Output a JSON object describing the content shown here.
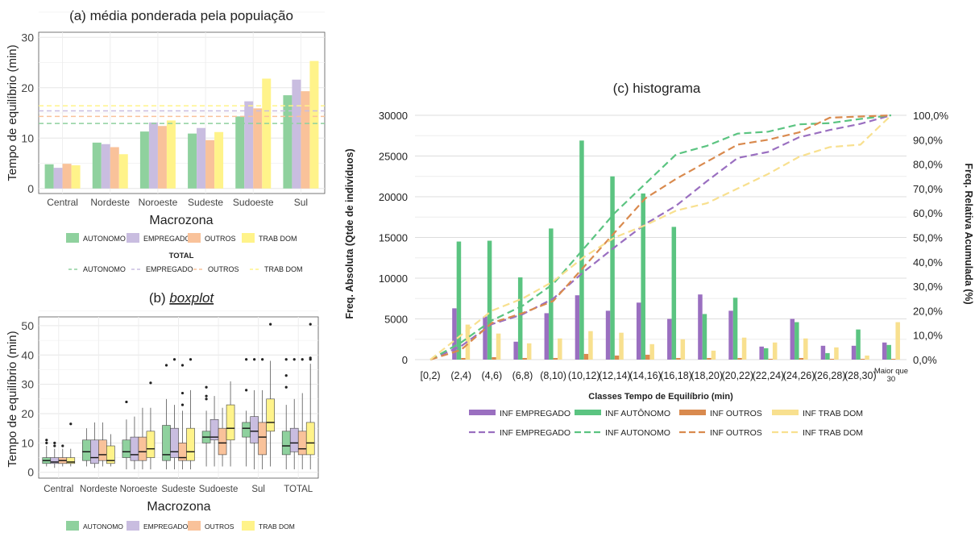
{
  "colors": {
    "autonomo": "#8fd19e",
    "empregado": "#c9bde0",
    "outros": "#f9c29a",
    "trab_dom": "#fff38a",
    "h_empregado": "#9a6fc0",
    "h_autonomo": "#5bc481",
    "h_outros": "#d98a4e",
    "h_trabdom": "#f8e08f"
  },
  "chart_data": [
    {
      "type": "bar",
      "title": "(a) média ponderada pela população",
      "xlabel": "Macrozona",
      "ylabel": "Tempo de equilíbrio (min)",
      "ylim": [
        -1,
        31
      ],
      "yticks": [
        "0",
        "10",
        "20",
        "30"
      ],
      "categories": [
        "Central",
        "Nordeste",
        "Noroeste",
        "Sudeste",
        "Sudoeste",
        "Sul"
      ],
      "series": [
        {
          "name": "AUTONOMO",
          "values": [
            4.8,
            9.1,
            11.3,
            10.9,
            14.3,
            18.5
          ]
        },
        {
          "name": "EMPREGADO",
          "values": [
            4.1,
            8.8,
            13.1,
            12.0,
            17.3,
            21.6
          ]
        },
        {
          "name": "OUTROS",
          "values": [
            4.9,
            8.2,
            12.4,
            9.6,
            15.9,
            19.3
          ]
        },
        {
          "name": "TRAB DOM",
          "values": [
            4.6,
            6.8,
            13.5,
            11.2,
            21.8,
            25.3
          ]
        }
      ],
      "total_lines": [
        {
          "name": "AUTONOMO",
          "value": 12.9
        },
        {
          "name": "EMPREGADO",
          "value": 15.4
        },
        {
          "name": "OUTROS",
          "value": 14.3
        },
        {
          "name": "TRAB DOM",
          "value": 16.4
        }
      ],
      "legend_title": "TOTAL",
      "grid": true,
      "legend": "bottom"
    },
    {
      "type": "box",
      "title_prefix": "(b) ",
      "title_emph": "boxplot",
      "xlabel": "Macrozona",
      "ylabel": "Tempo de equilíbrio (min)",
      "ylim": [
        -2,
        53
      ],
      "yticks": [
        "0",
        "10",
        "20",
        "30",
        "40",
        "50"
      ],
      "categories": [
        "Central",
        "Nordeste",
        "Noroeste",
        "Sudeste",
        "Sudoeste",
        "Sul",
        "TOTAL"
      ],
      "series_names": [
        "AUTONOMO",
        "EMPREGADO",
        "OUTROS",
        "TRAB DOM"
      ],
      "boxes": [
        [
          [
            2,
            3,
            4,
            4.5,
            5,
            9,
            [
              10,
              11
            ]
          ],
          [
            1.5,
            3,
            3.5,
            4,
            5,
            8,
            [
              9,
              10
            ]
          ],
          [
            2,
            3,
            4,
            4.5,
            5,
            8,
            [
              9
            ]
          ],
          [
            2,
            3,
            3.5,
            4.5,
            5,
            8,
            [
              16.5
            ]
          ]
        ],
        [
          [
            2,
            4,
            7,
            7.5,
            11,
            15,
            []
          ],
          [
            1.5,
            3,
            5,
            7,
            11,
            17,
            []
          ],
          [
            2,
            4,
            6,
            8,
            11,
            17,
            []
          ],
          [
            2,
            3,
            4,
            6,
            9,
            13,
            []
          ]
        ],
        [
          [
            1,
            5,
            7,
            8,
            11,
            18,
            [
              24
            ]
          ],
          [
            1,
            4,
            6,
            9,
            12,
            19,
            []
          ],
          [
            1,
            4,
            7,
            8,
            12,
            22,
            []
          ],
          [
            1,
            5,
            8,
            9,
            14,
            22,
            [
              30.5
            ]
          ]
        ],
        [
          [
            1,
            4,
            6,
            10,
            16,
            25,
            [
              36.5
            ]
          ],
          [
            1,
            5,
            7,
            10,
            15,
            23,
            [
              38.5
            ]
          ],
          [
            1,
            4,
            5,
            9,
            10,
            21,
            [
              23,
              27,
              36.5
            ]
          ],
          [
            1,
            4,
            7,
            9,
            15,
            28,
            [
              38.5
            ]
          ]
        ],
        [
          [
            2,
            10,
            12,
            12,
            14,
            21,
            [
              25,
              26,
              29
            ]
          ],
          [
            2,
            11,
            12,
            14,
            18,
            26,
            []
          ],
          [
            2,
            6,
            10,
            12,
            15,
            22,
            []
          ],
          [
            2,
            11,
            15,
            15,
            23,
            31,
            []
          ]
        ],
        [
          [
            2,
            12,
            15,
            16,
            17,
            21,
            [
              28,
              38.5
            ]
          ],
          [
            1,
            10,
            14,
            16,
            19,
            28,
            [
              38.5
            ]
          ],
          [
            1,
            6,
            12,
            15,
            17,
            28,
            [
              38.5
            ]
          ],
          [
            2,
            14,
            17,
            17,
            25,
            38,
            [
              50.5
            ]
          ]
        ],
        [
          [
            1,
            6,
            9,
            10,
            14,
            23,
            [
              29,
              33,
              38.5
            ]
          ],
          [
            1,
            7,
            10,
            13,
            15,
            25,
            [
              38.5
            ]
          ],
          [
            1,
            6,
            8,
            11,
            14,
            27,
            [
              38.5
            ]
          ],
          [
            1,
            6,
            10,
            11,
            17,
            37,
            [
              38.5,
              39,
              50.5
            ]
          ]
        ]
      ],
      "legend": "bottom"
    },
    {
      "type": "bar",
      "title": "(c) histograma",
      "xlabel": "Classes Tempo de Equilíbrio (min)",
      "ylabel": "Freq. Absoluta (Qtde de indivíduos)",
      "y2label": "Freq. Relativa Acumulada (%)",
      "ylim": [
        0,
        30000
      ],
      "yticks": [
        "0",
        "5000",
        "10000",
        "15000",
        "20000",
        "25000",
        "30000"
      ],
      "y2ticks": [
        "0,0%",
        "10,0%",
        "20,0%",
        "30,0%",
        "40,0%",
        "50,0%",
        "60,0%",
        "70,0%",
        "80,0%",
        "90,0%",
        "100,0%"
      ],
      "categories": [
        "[0,2)",
        "(2,4)",
        "(4,6)",
        "(6,8)",
        "(8,10)",
        "(10,12)",
        "(12,14)",
        "(14,16)",
        "(16,18)",
        "(18,20)",
        "(20,22)",
        "(22,24)",
        "(24,26)",
        "(26,28)",
        "(28,30)",
        "Maior que 30"
      ],
      "series": [
        {
          "name": "INF EMPREGADO",
          "values": [
            0,
            6300,
            5300,
            2200,
            5700,
            7900,
            6000,
            7000,
            5000,
            8000,
            6000,
            1600,
            5000,
            1700,
            1700,
            2100
          ]
        },
        {
          "name": "INF AUTÔNOMO",
          "values": [
            0,
            14500,
            14600,
            10100,
            16100,
            26900,
            22500,
            20400,
            16300,
            5600,
            7600,
            1400,
            4600,
            800,
            3700,
            1800
          ]
        },
        {
          "name": "INF OUTROS",
          "values": [
            0,
            200,
            300,
            200,
            200,
            700,
            500,
            600,
            200,
            200,
            200,
            100,
            200,
            100,
            100,
            100
          ]
        },
        {
          "name": "INF TRAB DOM",
          "values": [
            0,
            4300,
            3200,
            2000,
            2600,
            3500,
            3300,
            1900,
            2500,
            1100,
            2700,
            2100,
            2600,
            1500,
            500,
            4600
          ]
        }
      ],
      "lines": [
        {
          "name": "INF EMPREGADO",
          "values": [
            0,
            5.5,
            14.5,
            18.5,
            25,
            36,
            46,
            55.5,
            63,
            73,
            82.5,
            85,
            91,
            94,
            96.5,
            100
          ]
        },
        {
          "name": "INF AUTONOMO",
          "values": [
            0,
            7,
            16,
            22,
            31,
            45.5,
            60,
            72,
            84,
            87.5,
            92.5,
            93.3,
            96.3,
            96.8,
            98.5,
            100
          ]
        },
        {
          "name": "INF OUTROS",
          "values": [
            0,
            4,
            15,
            19,
            24,
            38,
            52,
            66,
            74,
            81,
            88,
            90,
            93,
            99,
            99.5,
            100
          ]
        },
        {
          "name": "INF TRAB DOM",
          "values": [
            0,
            10,
            20,
            25,
            32,
            42,
            50,
            55,
            61,
            64,
            70,
            76,
            83,
            87,
            88,
            100
          ]
        }
      ],
      "legend": "bottom"
    }
  ]
}
